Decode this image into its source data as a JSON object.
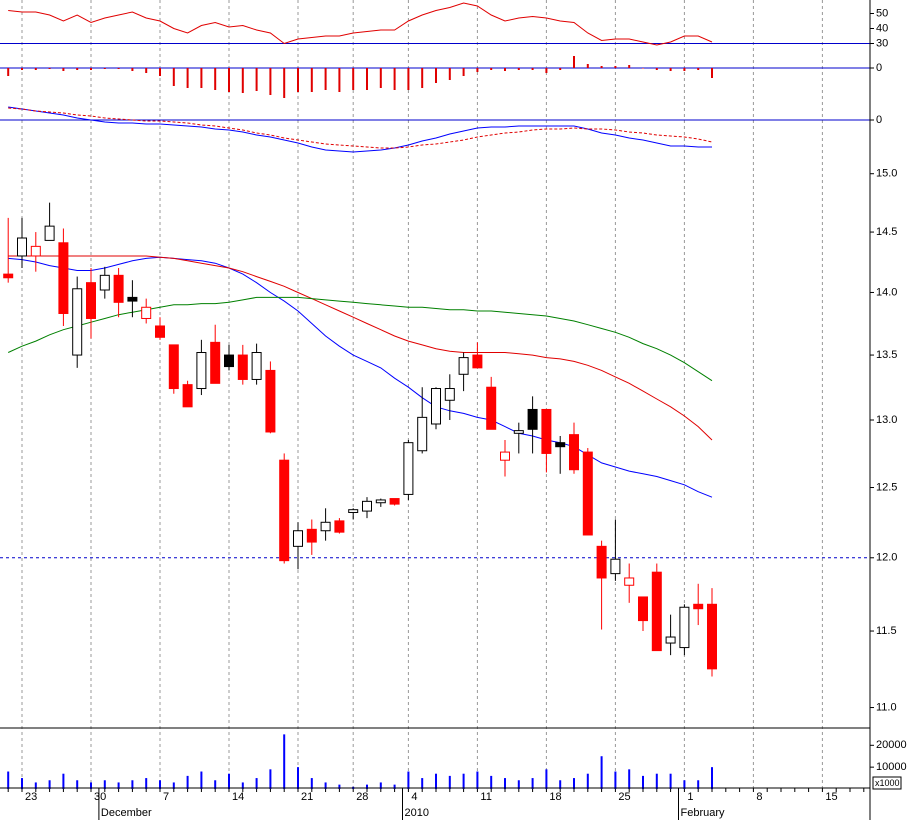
{
  "chart_data": [
    {
      "type": "line",
      "color": "#e00000",
      "ylim": [
        21,
        59
      ],
      "yticks": [
        30,
        40,
        50
      ],
      "ref_line": 30,
      "ref_color": "#0000cc",
      "values": [
        52,
        51,
        51,
        49,
        45,
        49,
        44,
        47,
        49,
        51,
        47,
        45,
        40,
        37,
        42,
        44,
        41,
        42,
        39,
        37,
        30,
        33,
        34,
        35,
        35,
        37,
        38,
        39,
        39,
        45,
        49,
        52,
        54,
        57,
        55,
        49,
        45,
        47,
        48,
        47,
        45,
        44,
        37,
        32,
        33,
        33,
        31,
        29,
        31,
        35,
        35,
        31,
        null,
        null,
        null,
        null,
        null,
        null,
        null,
        null,
        null,
        null,
        null
      ]
    },
    {
      "type": "bar",
      "color": "#e00000",
      "ylim": [
        -0.32,
        0.12
      ],
      "yticks": [
        0
      ],
      "ref_line": 0,
      "ref_color": "#0000cc",
      "values": [
        -0.08,
        -0.02,
        -0.02,
        -0.01,
        -0.03,
        -0.02,
        -0.02,
        -0.01,
        -0.01,
        -0.03,
        -0.05,
        -0.08,
        -0.18,
        -0.2,
        -0.2,
        -0.22,
        -0.24,
        -0.25,
        -0.23,
        -0.27,
        -0.3,
        -0.24,
        -0.24,
        -0.22,
        -0.24,
        -0.22,
        -0.22,
        -0.2,
        -0.22,
        -0.22,
        -0.2,
        -0.15,
        -0.12,
        -0.08,
        -0.04,
        -0.02,
        -0.03,
        -0.02,
        -0.02,
        -0.05,
        -0.02,
        0.12,
        0.04,
        0.02,
        0.02,
        0.03,
        0,
        -0.02,
        -0.03,
        -0.03,
        -0.02,
        -0.1,
        null,
        null,
        null,
        null,
        null,
        null,
        null,
        null,
        null,
        null,
        null
      ]
    },
    {
      "type": "line",
      "ylim": [
        -0.4,
        0.2
      ],
      "yticks": [
        0
      ],
      "ref_line": 0,
      "ref_color": "#0000cc",
      "series": [
        {
          "color": "#0000ff",
          "values": [
            0.13,
            0.11,
            0.09,
            0.07,
            0.05,
            0.02,
            0,
            -0.02,
            -0.03,
            -0.03,
            -0.04,
            -0.04,
            -0.05,
            -0.06,
            -0.07,
            -0.09,
            -0.1,
            -0.12,
            -0.15,
            -0.17,
            -0.2,
            -0.23,
            -0.27,
            -0.3,
            -0.31,
            -0.32,
            -0.31,
            -0.3,
            -0.28,
            -0.25,
            -0.21,
            -0.18,
            -0.14,
            -0.11,
            -0.08,
            -0.07,
            -0.07,
            -0.06,
            -0.06,
            -0.06,
            -0.06,
            -0.06,
            -0.09,
            -0.13,
            -0.15,
            -0.18,
            -0.2,
            -0.23,
            -0.26,
            -0.26,
            -0.27,
            -0.27,
            null,
            null,
            null,
            null,
            null,
            null,
            null,
            null,
            null,
            null,
            null
          ]
        },
        {
          "color": "#e00000",
          "dashed": true,
          "values": [
            0.12,
            0.11,
            0.09,
            0.08,
            0.07,
            0.05,
            0.04,
            0.02,
            0.01,
            0,
            -0.01,
            -0.01,
            -0.02,
            -0.03,
            -0.05,
            -0.06,
            -0.08,
            -0.1,
            -0.13,
            -0.15,
            -0.18,
            -0.2,
            -0.22,
            -0.24,
            -0.25,
            -0.26,
            -0.27,
            -0.28,
            -0.28,
            -0.27,
            -0.25,
            -0.24,
            -0.22,
            -0.2,
            -0.17,
            -0.15,
            -0.13,
            -0.12,
            -0.1,
            -0.09,
            -0.09,
            -0.08,
            -0.09,
            -0.09,
            -0.1,
            -0.12,
            -0.13,
            -0.15,
            -0.16,
            -0.17,
            -0.19,
            -0.22,
            null,
            null,
            null,
            null,
            null,
            null,
            null,
            null,
            null,
            null,
            null
          ]
        }
      ]
    },
    {
      "type": "candlestick",
      "log_scale": true,
      "ylim": [
        10.87,
        15.12
      ],
      "grid": true,
      "yticks": [
        {
          "value": 11,
          "label": "11.0"
        },
        11.5,
        {
          "value": 12,
          "label": "12.0"
        },
        12.5,
        {
          "value": 13,
          "label": "13.0"
        },
        13.5,
        {
          "value": 14,
          "label": "14.0"
        },
        14.5,
        {
          "value": 15,
          "label": "15.0"
        }
      ],
      "ref_line": 12,
      "ref_color": "#0000cc",
      "ref_dashed": true,
      "up_color": "#000000",
      "down_color": "#ff0000",
      "categories": [
        null,
        "23",
        null,
        null,
        null,
        null,
        "30",
        null,
        null,
        null,
        null,
        "7",
        null,
        null,
        null,
        null,
        "14",
        null,
        null,
        null,
        null,
        "21",
        null,
        null,
        null,
        "28",
        null,
        null,
        null,
        "4",
        null,
        null,
        null,
        null,
        "11",
        null,
        null,
        null,
        null,
        "18",
        null,
        null,
        null,
        null,
        "25",
        null,
        null,
        null,
        null,
        "1",
        null,
        null,
        null,
        null,
        "8",
        null,
        null,
        null,
        null,
        "15",
        null,
        null,
        null
      ],
      "month_labels": [
        null,
        null,
        null,
        null,
        null,
        null,
        null,
        "December",
        null,
        null,
        null,
        null,
        null,
        null,
        null,
        null,
        null,
        null,
        null,
        null,
        null,
        null,
        null,
        null,
        null,
        null,
        null,
        null,
        null,
        "2010",
        null,
        null,
        null,
        null,
        null,
        null,
        null,
        null,
        null,
        null,
        null,
        null,
        null,
        null,
        null,
        null,
        null,
        null,
        null,
        "February",
        null,
        null,
        null,
        null,
        null,
        null,
        null,
        null,
        null,
        null,
        null,
        null,
        null
      ],
      "open": [
        14.15,
        14.3,
        14.3,
        14.43,
        14.41,
        13.5,
        14.08,
        14.02,
        14.14,
        13.96,
        13.79,
        13.73,
        13.58,
        13.27,
        13.24,
        13.6,
        13.5,
        13.5,
        13.31,
        13.38,
        12.7,
        12.08,
        12.2,
        12.19,
        12.26,
        12.32,
        12.33,
        12.39,
        12.42,
        12.45,
        12.77,
        12.97,
        13.15,
        13.35,
        13.5,
        13.25,
        12.7,
        12.9,
        13.08,
        13.08,
        12.83,
        12.89,
        12.76,
        12.08,
        11.89,
        11.81,
        11.73,
        11.9,
        11.42,
        11.39,
        11.68,
        11.68,
        null,
        null,
        null,
        null,
        null,
        null,
        null,
        null,
        null,
        null,
        null
      ],
      "high": [
        14.62,
        14.62,
        14.5,
        14.75,
        14.53,
        14.13,
        14.2,
        14.21,
        14.2,
        14.1,
        13.95,
        13.8,
        13.58,
        13.3,
        13.62,
        13.74,
        13.58,
        13.58,
        13.59,
        13.45,
        12.75,
        12.25,
        12.27,
        12.35,
        12.28,
        12.35,
        12.43,
        12.42,
        12.42,
        12.85,
        13.25,
        13.25,
        13.35,
        13.52,
        13.6,
        13.33,
        12.85,
        12.98,
        13.18,
        13.08,
        12.88,
        12.98,
        12.79,
        12.12,
        12.27,
        11.96,
        11.73,
        11.96,
        11.61,
        11.68,
        11.82,
        11.79,
        null,
        null,
        null,
        null,
        null,
        null,
        null,
        null,
        null,
        null,
        null
      ],
      "low": [
        14.08,
        14.2,
        14.17,
        14.43,
        13.73,
        13.4,
        13.63,
        13.95,
        13.8,
        13.8,
        13.75,
        13.62,
        13.2,
        13.1,
        13.19,
        13.28,
        13.38,
        13.27,
        13.27,
        12.9,
        11.96,
        11.92,
        12.02,
        12.12,
        12.17,
        12.27,
        12.28,
        12.36,
        12.37,
        12.41,
        12.75,
        12.93,
        13,
        13.22,
        13.4,
        12.93,
        12.58,
        12.75,
        12.75,
        12.61,
        12.6,
        12.6,
        12.16,
        11.51,
        11.84,
        11.69,
        11.5,
        11.37,
        11.34,
        11.34,
        11.54,
        11.2,
        null,
        null,
        null,
        null,
        null,
        null,
        null,
        null,
        null,
        null,
        null
      ],
      "close": [
        14.12,
        14.45,
        14.38,
        14.55,
        13.83,
        14.03,
        13.79,
        14.14,
        13.92,
        13.93,
        13.88,
        13.64,
        13.24,
        13.1,
        13.52,
        13.28,
        13.41,
        13.31,
        13.52,
        12.91,
        11.98,
        12.19,
        12.11,
        12.25,
        12.18,
        12.34,
        12.4,
        12.41,
        12.38,
        12.83,
        13.02,
        13.24,
        13.24,
        13.48,
        13.4,
        12.93,
        12.76,
        12.92,
        12.93,
        12.75,
        12.8,
        12.63,
        12.16,
        11.86,
        11.99,
        11.86,
        11.57,
        11.37,
        11.46,
        11.66,
        11.65,
        11.25,
        null,
        null,
        null,
        null,
        null,
        null,
        null,
        null,
        null,
        null,
        null
      ],
      "lines": [
        {
          "color": "#0000ff",
          "values": [
            14.28,
            14.27,
            14.25,
            14.22,
            14.2,
            14.18,
            14.18,
            14.2,
            14.23,
            14.26,
            14.28,
            14.29,
            14.28,
            14.27,
            14.26,
            14.24,
            14.2,
            14.15,
            14.08,
            14,
            13.93,
            13.85,
            13.75,
            13.65,
            13.57,
            13.5,
            13.45,
            13.4,
            13.32,
            13.25,
            13.17,
            13.1,
            13.07,
            13.05,
            13.02,
            13,
            12.95,
            12.9,
            12.88,
            12.85,
            12.83,
            12.8,
            12.74,
            12.68,
            12.65,
            12.62,
            12.6,
            12.58,
            12.55,
            12.52,
            12.47,
            12.43,
            null,
            null,
            null,
            null,
            null,
            null,
            null,
            null,
            null,
            null,
            null
          ]
        },
        {
          "color": "#e00000",
          "values": [
            14.3,
            14.3,
            14.3,
            14.3,
            14.3,
            14.3,
            14.3,
            14.3,
            14.3,
            14.3,
            14.3,
            14.29,
            14.28,
            14.26,
            14.24,
            14.22,
            14.2,
            14.17,
            14.13,
            14.09,
            14.05,
            14,
            13.95,
            13.9,
            13.85,
            13.8,
            13.75,
            13.7,
            13.65,
            13.61,
            13.58,
            13.55,
            13.53,
            13.52,
            13.52,
            13.52,
            13.52,
            13.51,
            13.5,
            13.48,
            13.47,
            13.45,
            13.42,
            13.38,
            13.33,
            13.28,
            13.22,
            13.16,
            13.1,
            13.03,
            12.95,
            12.85,
            null,
            null,
            null,
            null,
            null,
            null,
            null,
            null,
            null,
            null,
            null
          ]
        },
        {
          "color": "#008000",
          "values": [
            13.52,
            13.57,
            13.61,
            13.66,
            13.7,
            13.73,
            13.76,
            13.79,
            13.82,
            13.84,
            13.86,
            13.88,
            13.9,
            13.9,
            13.91,
            13.91,
            13.92,
            13.94,
            13.96,
            13.96,
            13.96,
            13.96,
            13.95,
            13.94,
            13.93,
            13.92,
            13.91,
            13.9,
            13.89,
            13.88,
            13.88,
            13.87,
            13.86,
            13.86,
            13.85,
            13.85,
            13.84,
            13.83,
            13.82,
            13.81,
            13.79,
            13.77,
            13.74,
            13.71,
            13.68,
            13.64,
            13.59,
            13.55,
            13.5,
            13.44,
            13.37,
            13.3,
            null,
            null,
            null,
            null,
            null,
            null,
            null,
            null,
            null,
            null,
            null
          ]
        }
      ]
    },
    {
      "type": "bar",
      "color": "#0000ff",
      "ylim": [
        0,
        27000
      ],
      "yticks": [
        10000,
        20000
      ],
      "unit_label": "x1000",
      "values": [
        8000,
        5000,
        3000,
        4000,
        7000,
        4000,
        3000,
        4000,
        3000,
        4000,
        5000,
        4000,
        3000,
        6000,
        8000,
        4000,
        7000,
        3000,
        5000,
        9000,
        25000,
        10000,
        5000,
        3000,
        2000,
        1000,
        2000,
        3000,
        2000,
        8000,
        5000,
        7000,
        6000,
        7000,
        8000,
        6000,
        5000,
        4000,
        5000,
        9000,
        4000,
        5000,
        7000,
        15000,
        8000,
        9000,
        6000,
        7000,
        7000,
        4000,
        4000,
        10000,
        null,
        null,
        null,
        null,
        null,
        null,
        null,
        null,
        null,
        null,
        null
      ]
    }
  ]
}
